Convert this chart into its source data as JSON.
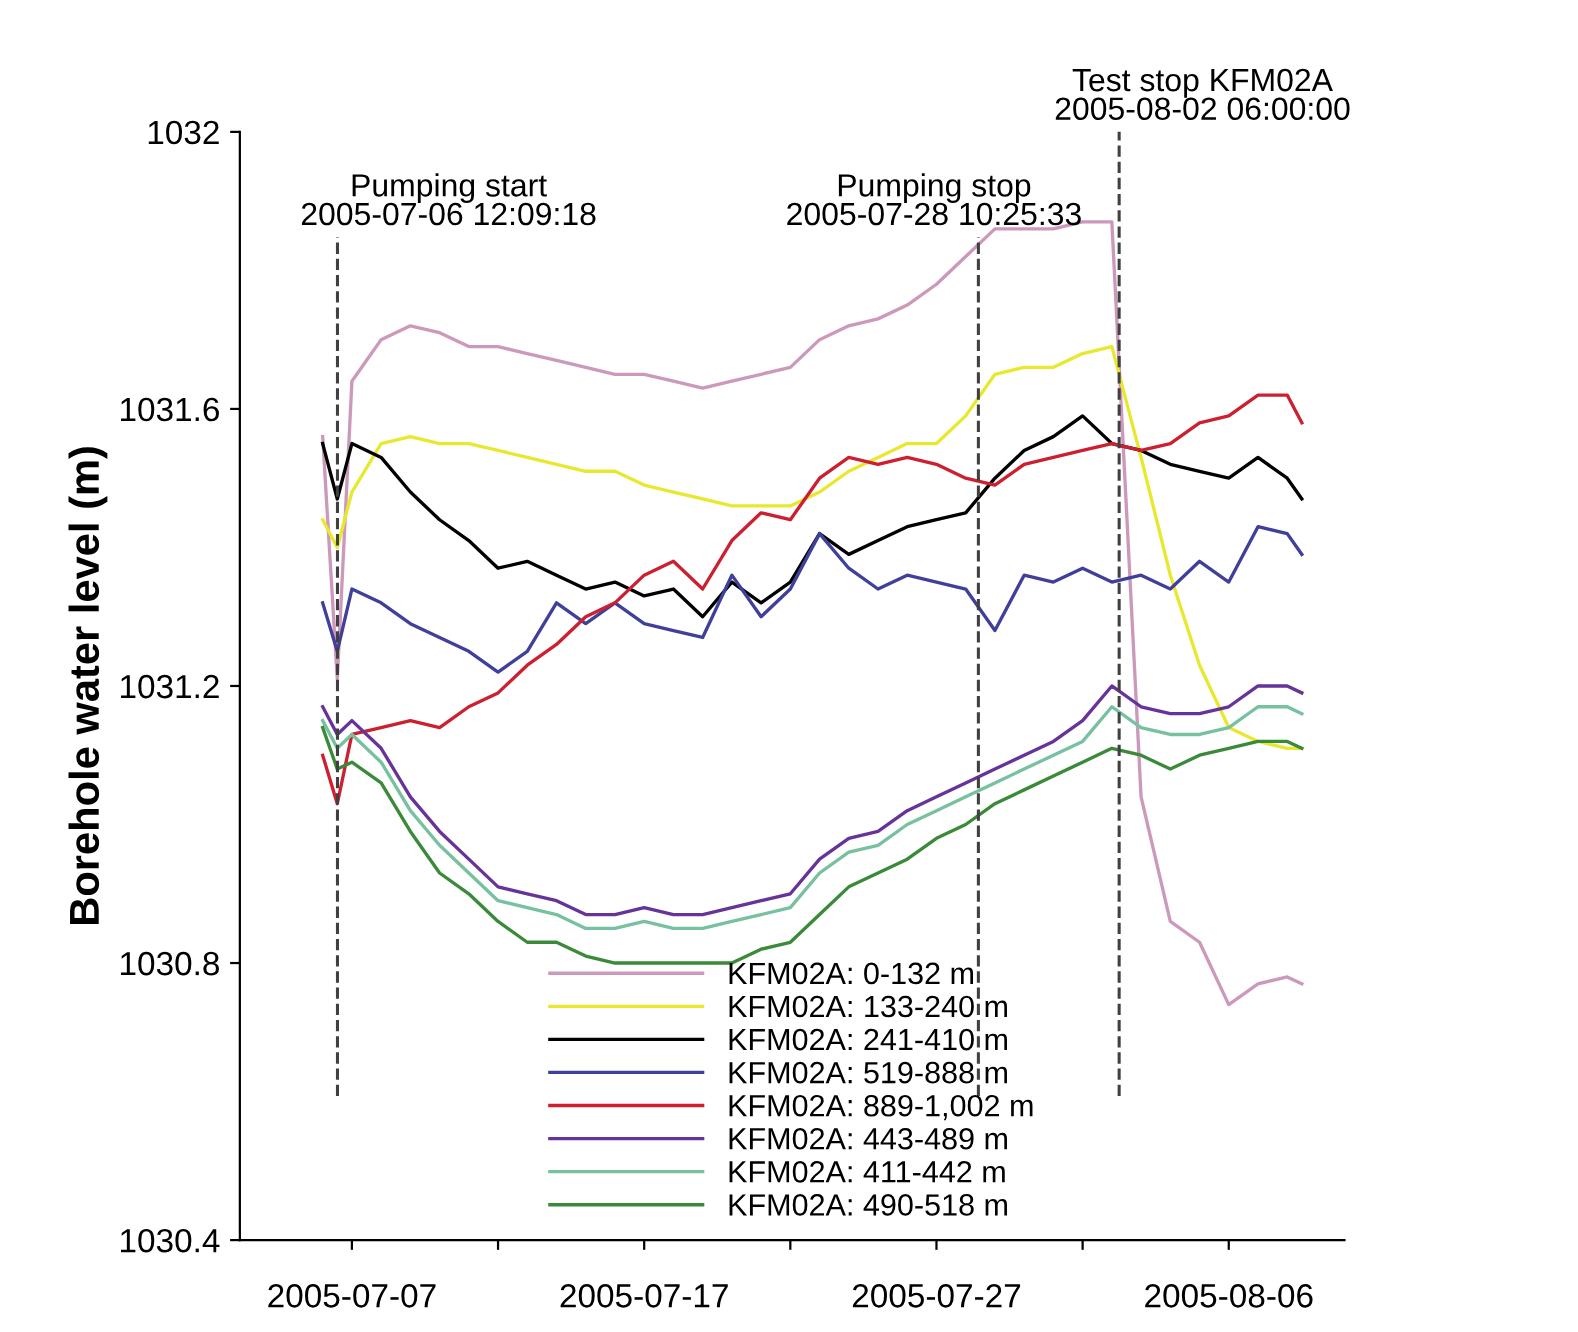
{
  "chart_data": {
    "type": "line",
    "ylabel": "Borehole water level (m)",
    "x": [
      "2005-07-06T00:00",
      "2005-07-06T12:00",
      "2005-07-07",
      "2005-07-08",
      "2005-07-09",
      "2005-07-10",
      "2005-07-11",
      "2005-07-12",
      "2005-07-13",
      "2005-07-14",
      "2005-07-15",
      "2005-07-16",
      "2005-07-17",
      "2005-07-18",
      "2005-07-19",
      "2005-07-20",
      "2005-07-21",
      "2005-07-22",
      "2005-07-23",
      "2005-07-24",
      "2005-07-25",
      "2005-07-26",
      "2005-07-27",
      "2005-07-28",
      "2005-07-29",
      "2005-07-30",
      "2005-07-31",
      "2005-08-01",
      "2005-08-02",
      "2005-08-03",
      "2005-08-04",
      "2005-08-05",
      "2005-08-06",
      "2005-08-07",
      "2005-08-08",
      "2005-08-08T12:00"
    ],
    "series": [
      {
        "name": "KFM02A: 0-132 m",
        "color": "#cc99bb",
        "values": [
          1031.56,
          1031.21,
          1031.64,
          1031.7,
          1031.72,
          1031.71,
          1031.69,
          1031.69,
          1031.68,
          1031.67,
          1031.66,
          1031.65,
          1031.65,
          1031.64,
          1031.63,
          1031.64,
          1031.65,
          1031.66,
          1031.7,
          1031.72,
          1031.73,
          1031.75,
          1031.78,
          1031.82,
          1031.86,
          1031.86,
          1031.86,
          1031.87,
          1031.87,
          1031.04,
          1030.86,
          1030.83,
          1030.74,
          1030.77,
          1030.78,
          1030.77
        ]
      },
      {
        "name": "KFM02A: 133-240 m",
        "color": "#e8e830",
        "values": [
          1031.44,
          1031.4,
          1031.48,
          1031.55,
          1031.56,
          1031.55,
          1031.55,
          1031.54,
          1031.53,
          1031.52,
          1031.51,
          1031.51,
          1031.49,
          1031.48,
          1031.47,
          1031.46,
          1031.46,
          1031.46,
          1031.48,
          1031.51,
          1031.53,
          1031.55,
          1031.55,
          1031.59,
          1031.65,
          1031.66,
          1031.66,
          1031.68,
          1031.69,
          1031.53,
          1031.36,
          1031.23,
          1031.14,
          1031.12,
          1031.11,
          1031.11
        ]
      },
      {
        "name": "KFM02A: 241-410 m",
        "color": "#000000",
        "values": [
          1031.55,
          1031.47,
          1031.55,
          1031.53,
          1031.48,
          1031.44,
          1031.41,
          1031.37,
          1031.38,
          1031.36,
          1031.34,
          1031.35,
          1031.33,
          1031.34,
          1031.3,
          1031.35,
          1031.32,
          1031.35,
          1031.42,
          1031.39,
          1031.41,
          1031.43,
          1031.44,
          1031.45,
          1031.5,
          1031.54,
          1031.56,
          1031.59,
          1031.55,
          1031.54,
          1031.52,
          1031.51,
          1031.5,
          1031.53,
          1031.5,
          1031.47
        ]
      },
      {
        "name": "KFM02A: 519-888 m",
        "color": "#40409a",
        "values": [
          1031.32,
          1031.25,
          1031.34,
          1031.32,
          1031.29,
          1031.27,
          1031.25,
          1031.22,
          1031.25,
          1031.32,
          1031.29,
          1031.32,
          1031.29,
          1031.28,
          1031.27,
          1031.36,
          1031.3,
          1031.34,
          1031.42,
          1031.37,
          1031.34,
          1031.36,
          1031.35,
          1031.34,
          1031.28,
          1031.36,
          1031.35,
          1031.37,
          1031.35,
          1031.36,
          1031.34,
          1031.38,
          1031.35,
          1031.43,
          1031.42,
          1031.39
        ]
      },
      {
        "name": "KFM02A: 889-1,002 m",
        "color": "#cc2030",
        "values": [
          1031.1,
          1031.03,
          1031.13,
          1031.14,
          1031.15,
          1031.14,
          1031.17,
          1031.19,
          1031.23,
          1031.26,
          1031.3,
          1031.32,
          1031.36,
          1031.38,
          1031.34,
          1031.41,
          1031.45,
          1031.44,
          1031.5,
          1031.53,
          1031.52,
          1031.53,
          1031.52,
          1031.5,
          1031.49,
          1031.52,
          1031.53,
          1031.54,
          1031.55,
          1031.54,
          1031.55,
          1031.58,
          1031.59,
          1031.62,
          1031.62,
          1031.58
        ]
      },
      {
        "name": "KFM02A: 443-489 m",
        "color": "#663399",
        "values": [
          1031.17,
          1031.13,
          1031.15,
          1031.11,
          1031.04,
          1030.99,
          1030.95,
          1030.91,
          1030.9,
          1030.89,
          1030.87,
          1030.87,
          1030.88,
          1030.87,
          1030.87,
          1030.88,
          1030.89,
          1030.9,
          1030.95,
          1030.98,
          1030.99,
          1031.02,
          1031.04,
          1031.06,
          1031.08,
          1031.1,
          1031.12,
          1031.15,
          1031.2,
          1031.17,
          1031.16,
          1031.16,
          1031.17,
          1031.2,
          1031.2,
          1031.19
        ]
      },
      {
        "name": "KFM02A: 411-442 m",
        "color": "#77c0a0",
        "values": [
          1031.15,
          1031.11,
          1031.13,
          1031.09,
          1031.02,
          1030.97,
          1030.93,
          1030.89,
          1030.88,
          1030.87,
          1030.85,
          1030.85,
          1030.86,
          1030.85,
          1030.85,
          1030.86,
          1030.87,
          1030.88,
          1030.93,
          1030.96,
          1030.97,
          1031.0,
          1031.02,
          1031.04,
          1031.06,
          1031.08,
          1031.1,
          1031.12,
          1031.17,
          1031.14,
          1031.13,
          1031.13,
          1031.14,
          1031.17,
          1031.17,
          1031.16
        ]
      },
      {
        "name": "KFM02A: 490-518 m",
        "color": "#3a8a3a",
        "values": [
          1031.14,
          1031.08,
          1031.09,
          1031.06,
          1030.99,
          1030.93,
          1030.9,
          1030.86,
          1030.83,
          1030.83,
          1030.81,
          1030.8,
          1030.8,
          1030.8,
          1030.8,
          1030.8,
          1030.82,
          1030.83,
          1030.87,
          1030.91,
          1030.93,
          1030.95,
          1030.98,
          1031.0,
          1031.03,
          1031.05,
          1031.07,
          1031.09,
          1031.11,
          1031.1,
          1031.08,
          1031.1,
          1031.11,
          1031.12,
          1031.12,
          1031.11
        ]
      }
    ],
    "xlim": [
      "2005-07-03T04:00",
      "2005-08-09T23:00"
    ],
    "xticks": [
      {
        "value": "2005-07-07",
        "label": "2005-07-07"
      },
      {
        "value": "2005-07-12",
        "label": null
      },
      {
        "value": "2005-07-17",
        "label": "2005-07-17"
      },
      {
        "value": "2005-07-22",
        "label": null
      },
      {
        "value": "2005-07-27",
        "label": "2005-07-27"
      },
      {
        "value": "2005-08-01",
        "label": null
      },
      {
        "value": "2005-08-06",
        "label": "2005-08-06"
      }
    ],
    "ylim": [
      1030.4,
      1032
    ],
    "yticks": [
      1030.4,
      1030.8,
      1031.2,
      1031.6,
      1032
    ],
    "ref_lines": [
      {
        "axis": "x",
        "value": "2005-07-06T12:09",
        "label": "Pumping start\n2005-07-06 12:09:18",
        "color": "#404040",
        "line_style": "dashed"
      },
      {
        "axis": "x",
        "value": "2005-07-28T10:25",
        "label": "Pumping stop\n2005-07-28 10:25:33",
        "color": "#404040",
        "line_style": "dashed"
      },
      {
        "axis": "x",
        "value": "2005-08-02T06:00",
        "label": "Test stop KFM02A\n2005-08-02 06:00:00",
        "color": "#404040",
        "line_style": "dashed"
      }
    ],
    "grid": false,
    "legend": "bottom",
    "marker": "none",
    "line_style": "solid"
  }
}
